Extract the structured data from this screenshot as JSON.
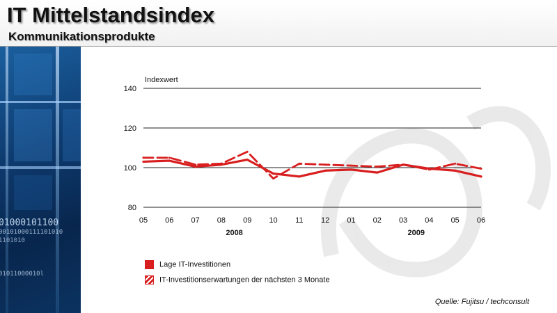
{
  "header": {
    "title": "IT Mittelstandsindex",
    "subtitle": "Kommunikationsprodukte"
  },
  "sidebar": {
    "binary_lines": [
      "01000101100",
      "00101000111101010",
      "1101010",
      "01011000010l"
    ]
  },
  "source": "Quelle: Fujitsu / techconsult",
  "colors": {
    "series": "#d81e1e",
    "accent": "#0d3a6e"
  },
  "chart_data": {
    "type": "line",
    "title": "",
    "ylabel": "Indexwert",
    "xlabel": "",
    "ylim": [
      80,
      140
    ],
    "yticks": [
      80,
      100,
      120,
      140
    ],
    "grid": true,
    "categories": [
      "05",
      "06",
      "07",
      "08",
      "09",
      "10",
      "11",
      "12",
      "01",
      "02",
      "03",
      "04",
      "05",
      "06"
    ],
    "year_labels": [
      {
        "label": "2008",
        "after_index": 3.5
      },
      {
        "label": "2009",
        "after_index": 10.5
      }
    ],
    "legend_position": "bottom-left",
    "series": [
      {
        "name": "Lage IT-Investitionen",
        "style": "solid",
        "values": [
          103,
          103.5,
          100.5,
          101.5,
          104,
          97,
          95.5,
          98.5,
          99,
          97.5,
          101.5,
          99.5,
          98.5,
          95.5
        ]
      },
      {
        "name": "IT-Investitionserwartungen  der nächsten 3 Monate",
        "style": "dashed",
        "values": [
          105,
          105,
          101.5,
          102,
          108,
          94.5,
          102,
          101.5,
          101,
          100.5,
          101.5,
          99,
          102,
          99.5
        ]
      }
    ]
  }
}
